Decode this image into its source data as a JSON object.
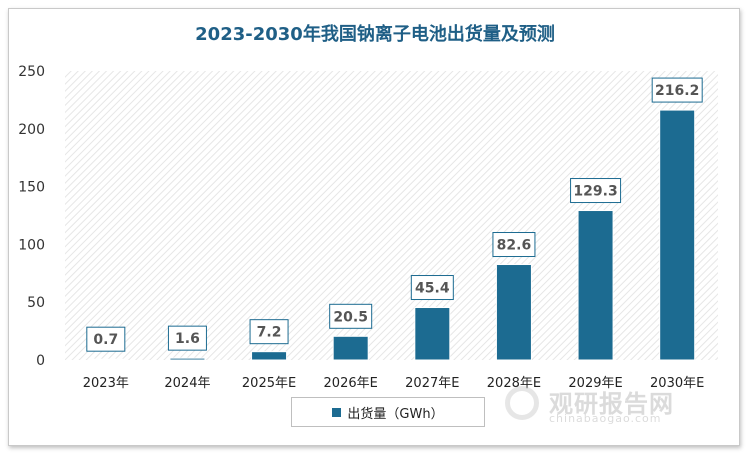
{
  "chart_data": {
    "type": "bar",
    "title": "2023-2030年我国钠离子电池出货量及预测",
    "categories": [
      "2023年",
      "2024年",
      "2025年E",
      "2026年E",
      "2027年E",
      "2028年E",
      "2029年E",
      "2030年E"
    ],
    "series": [
      {
        "name": "出货量（GWh）",
        "values": [
          0.7,
          1.6,
          7.2,
          20.5,
          45.4,
          82.6,
          129.3,
          216.2
        ]
      }
    ],
    "data_labels": [
      "0.7",
      "1.6",
      "7.2",
      "20.5",
      "45.4",
      "82.6",
      "129.3",
      "216.2"
    ],
    "ylim": [
      0,
      250
    ],
    "yticks": [
      "0",
      "50",
      "100",
      "150",
      "200",
      "250"
    ],
    "grid": false,
    "plot_background": "diagonal hatch",
    "legend_position": "bottom",
    "colors": {
      "bar": "#1c6b91",
      "title": "#1f5f86",
      "label_border": "#1c6b91"
    }
  },
  "watermark": {
    "brand": "观研报告网",
    "url": "chinabaogao.com"
  }
}
